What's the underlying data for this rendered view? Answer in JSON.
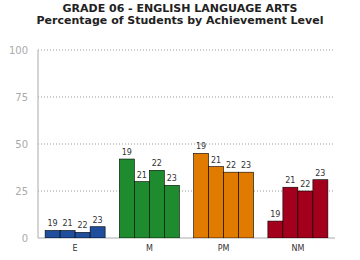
{
  "chart_data": {
    "type": "bar",
    "title": "GRADE 06 - ENGLISH LANGUAGE ARTS",
    "subtitle": "Percentage of Students by Achievement Level",
    "categories": [
      "E",
      "M",
      "PM",
      "NM"
    ],
    "series": [
      {
        "name": "19",
        "values": [
          4,
          42,
          45,
          9
        ]
      },
      {
        "name": "21",
        "values": [
          4,
          30,
          38,
          27
        ]
      },
      {
        "name": "22",
        "values": [
          3,
          36,
          35,
          25
        ]
      },
      {
        "name": "23",
        "values": [
          6,
          28,
          35,
          31
        ]
      }
    ],
    "colors": [
      "#1f4e9c",
      "#1e8c2e",
      "#e07b00",
      "#a3001e"
    ],
    "ylim": [
      0,
      100
    ],
    "yticks": [
      0,
      25,
      50,
      75,
      100
    ],
    "grid": true
  }
}
